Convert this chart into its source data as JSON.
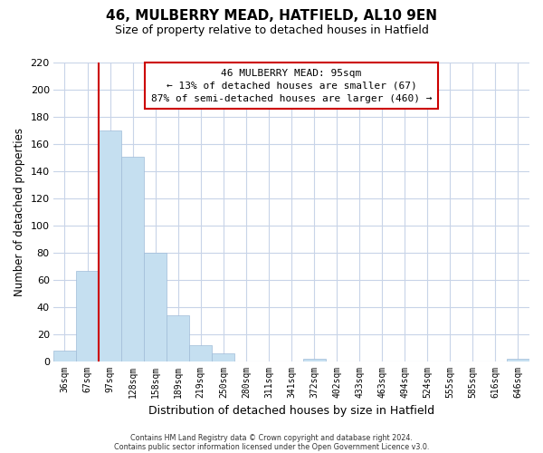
{
  "title": "46, MULBERRY MEAD, HATFIELD, AL10 9EN",
  "subtitle": "Size of property relative to detached houses in Hatfield",
  "xlabel": "Distribution of detached houses by size in Hatfield",
  "ylabel": "Number of detached properties",
  "categories": [
    "36sqm",
    "67sqm",
    "97sqm",
    "128sqm",
    "158sqm",
    "189sqm",
    "219sqm",
    "250sqm",
    "280sqm",
    "311sqm",
    "341sqm",
    "372sqm",
    "402sqm",
    "433sqm",
    "463sqm",
    "494sqm",
    "524sqm",
    "555sqm",
    "585sqm",
    "616sqm",
    "646sqm"
  ],
  "values": [
    8,
    67,
    170,
    151,
    80,
    34,
    12,
    6,
    0,
    0,
    0,
    2,
    0,
    0,
    0,
    0,
    0,
    0,
    0,
    0,
    2
  ],
  "bar_color": "#c5dff0",
  "highlight_color": "#cc0000",
  "red_line_x": 1.5,
  "ylim": [
    0,
    220
  ],
  "yticks": [
    0,
    20,
    40,
    60,
    80,
    100,
    120,
    140,
    160,
    180,
    200,
    220
  ],
  "annotation_title": "46 MULBERRY MEAD: 95sqm",
  "annotation_line1": "← 13% of detached houses are smaller (67)",
  "annotation_line2": "87% of semi-detached houses are larger (460) →",
  "footer1": "Contains HM Land Registry data © Crown copyright and database right 2024.",
  "footer2": "Contains public sector information licensed under the Open Government Licence v3.0.",
  "background_color": "#ffffff",
  "grid_color": "#c8d4e8"
}
